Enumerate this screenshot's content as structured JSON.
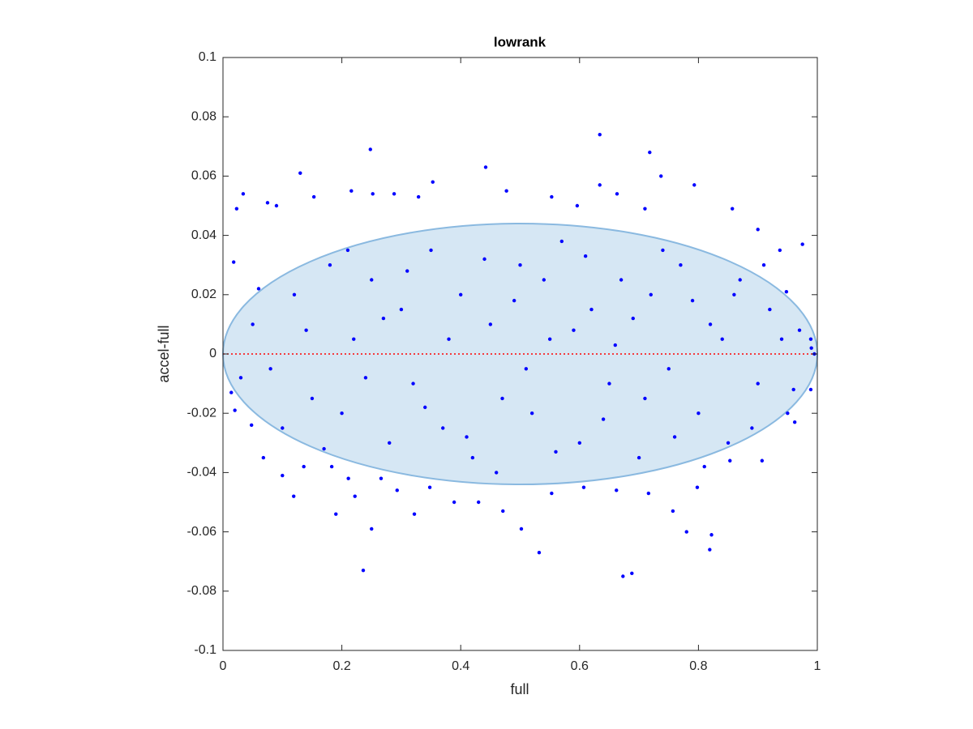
{
  "chart_data": {
    "type": "scatter",
    "title": "lowrank",
    "xlabel": "full",
    "ylabel": "accel-full",
    "xlim": [
      0,
      1
    ],
    "xticks": [
      0,
      0.2,
      0.4,
      0.6,
      0.8,
      1
    ],
    "ylim": [
      -0.1,
      0.1
    ],
    "yticks": [
      -0.1,
      -0.08,
      -0.06,
      -0.04,
      -0.02,
      0,
      0.02,
      0.04,
      0.06,
      0.08,
      0.1
    ],
    "color": "#0000ff",
    "ellipse": {
      "center": [
        0.5,
        0
      ],
      "radii": [
        0.5,
        0.044
      ],
      "fill": "#d6e7f4",
      "stroke": "#8ab9e0"
    },
    "hline": {
      "value": 0,
      "color": "#ff0000"
    },
    "x": [
      0.634,
      0.718,
      0.248,
      0.13,
      0.442,
      0.353,
      0.737,
      0.634,
      0.236,
      0.532,
      0.673,
      0.688,
      0.819,
      0.822,
      0.25,
      0.78,
      0.222,
      0.119,
      0.19,
      0.322,
      0.502,
      0.034,
      0.023,
      0.793,
      0.153,
      0.216,
      0.252,
      0.288,
      0.329,
      0.477,
      0.553,
      0.596,
      0.663,
      0.71,
      0.857,
      0.9,
      0.018,
      0.075,
      0.09,
      0.014,
      0.02,
      0.048,
      0.068,
      0.1,
      0.136,
      0.183,
      0.211,
      0.266,
      0.293,
      0.348,
      0.389,
      0.43,
      0.471,
      0.553,
      0.607,
      0.662,
      0.716,
      0.757,
      0.798,
      0.853,
      0.907,
      0.962,
      0.989,
      0.975,
      0.937,
      0.948,
      0.989,
      0.995,
      0.05,
      0.08,
      0.12,
      0.15,
      0.18,
      0.2,
      0.22,
      0.25,
      0.28,
      0.3,
      0.32,
      0.35,
      0.37,
      0.4,
      0.42,
      0.45,
      0.47,
      0.5,
      0.52,
      0.55,
      0.57,
      0.6,
      0.62,
      0.65,
      0.67,
      0.7,
      0.72,
      0.75,
      0.77,
      0.8,
      0.82,
      0.85,
      0.87,
      0.9,
      0.92,
      0.95,
      0.97,
      0.03,
      0.06,
      0.1,
      0.14,
      0.17,
      0.21,
      0.24,
      0.27,
      0.31,
      0.34,
      0.38,
      0.41,
      0.44,
      0.46,
      0.49,
      0.51,
      0.54,
      0.56,
      0.59,
      0.61,
      0.64,
      0.66,
      0.69,
      0.71,
      0.74,
      0.76,
      0.79,
      0.81,
      0.84,
      0.86,
      0.89,
      0.91,
      0.94,
      0.96,
      0.99
    ],
    "y": [
      0.074,
      0.068,
      0.069,
      0.061,
      0.063,
      0.058,
      0.06,
      0.057,
      -0.073,
      -0.067,
      -0.075,
      -0.074,
      -0.066,
      -0.061,
      -0.059,
      -0.06,
      -0.048,
      -0.048,
      -0.054,
      -0.054,
      -0.059,
      0.054,
      0.049,
      0.057,
      0.053,
      0.055,
      0.054,
      0.054,
      0.053,
      0.055,
      0.053,
      0.05,
      0.054,
      0.049,
      0.049,
      0.042,
      0.031,
      0.051,
      0.05,
      -0.013,
      -0.019,
      -0.024,
      -0.035,
      -0.041,
      -0.038,
      -0.038,
      -0.042,
      -0.042,
      -0.046,
      -0.045,
      -0.05,
      -0.05,
      -0.053,
      -0.047,
      -0.045,
      -0.046,
      -0.047,
      -0.053,
      -0.045,
      -0.036,
      -0.036,
      -0.023,
      -0.012,
      0.037,
      0.035,
      0.021,
      0.005,
      0,
      0.01,
      -0.005,
      0.02,
      -0.015,
      0.03,
      -0.02,
      0.005,
      0.025,
      -0.03,
      0.015,
      -0.01,
      0.035,
      -0.025,
      0.02,
      -0.035,
      0.01,
      -0.015,
      0.03,
      -0.02,
      0.005,
      0.038,
      -0.03,
      0.015,
      -0.01,
      0.025,
      -0.035,
      0.02,
      -0.005,
      0.03,
      -0.02,
      0.01,
      -0.03,
      0.025,
      -0.01,
      0.015,
      -0.02,
      0.008,
      -0.008,
      0.022,
      -0.025,
      0.008,
      -0.032,
      0.035,
      -0.008,
      0.012,
      0.028,
      -0.018,
      0.005,
      -0.028,
      0.032,
      -0.04,
      0.018,
      -0.005,
      0.025,
      -0.033,
      0.008,
      0.033,
      -0.022,
      0.003,
      0.012,
      -0.015,
      0.035,
      -0.028,
      0.018,
      -0.038,
      0.005,
      0.02,
      -0.025,
      0.03,
      0.005,
      -0.012,
      0.002
    ]
  }
}
